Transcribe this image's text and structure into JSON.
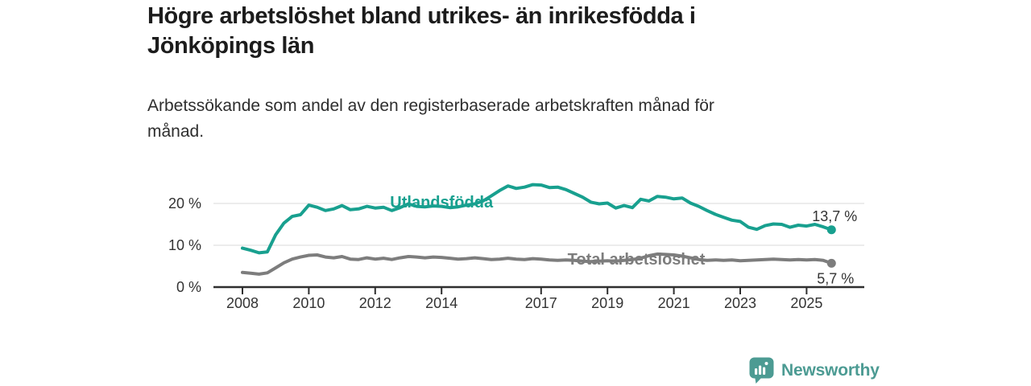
{
  "header": {
    "title_lines": [
      "Högre arbetslöshet bland utrikes- än inrikesfödda i",
      "Jönköpings län"
    ],
    "subtitle_lines": [
      "Arbetssökande som andel av den registerbaserade arbetskraften månad för",
      "månad."
    ]
  },
  "chart_data": {
    "type": "line",
    "title": "Högre arbetslöshet bland utrikes- än inrikesfödda i Jönköpings län",
    "subtitle": "Arbetssökande som andel av den registerbaserade arbetskraften månad för månad.",
    "unit": "%",
    "grid": "horizontal",
    "x_range": [
      2008,
      2025.83
    ],
    "y_range": [
      0,
      25
    ],
    "x_ticks": [
      2008,
      2010,
      2012,
      2014,
      2017,
      2019,
      2021,
      2023,
      2025
    ],
    "y_ticks": [
      {
        "value": 20,
        "label": "20 %"
      },
      {
        "value": 10,
        "label": "10 %"
      },
      {
        "value": 0,
        "label": "0 %"
      }
    ],
    "x_start": 2008,
    "x_step_years": 0.25,
    "series": [
      {
        "name": "Utlandsfödda",
        "color": "#18a08f",
        "end_value": 13.7,
        "end_label": "13,7 %",
        "end_label_offset": {
          "dx": 32,
          "dy": -11
        },
        "label_anchor": {
          "year": 2014.0,
          "value": 19.0
        },
        "values": [
          9.3,
          8.8,
          8.2,
          8.4,
          12.5,
          15.3,
          16.9,
          17.3,
          19.6,
          19.1,
          18.3,
          18.7,
          19.5,
          18.5,
          18.7,
          19.3,
          18.9,
          19.1,
          18.3,
          19.0,
          19.9,
          19.3,
          19.2,
          19.4,
          19.3,
          19.0,
          19.2,
          19.6,
          19.9,
          20.6,
          21.8,
          23.1,
          24.2,
          23.6,
          23.9,
          24.5,
          24.4,
          23.8,
          23.9,
          23.3,
          22.4,
          21.5,
          20.3,
          19.9,
          20.1,
          18.9,
          19.5,
          19.0,
          21.0,
          20.6,
          21.7,
          21.5,
          21.1,
          21.3,
          20.1,
          19.3,
          18.3,
          17.4,
          16.7,
          16.0,
          15.7,
          14.3,
          13.8,
          14.7,
          15.1,
          15.0,
          14.3,
          14.8,
          14.6,
          15.0,
          14.4,
          13.7
        ]
      },
      {
        "name": "Total arbetslöshet",
        "color": "#7d7d7d",
        "end_value": 5.7,
        "end_label": "5,7 %",
        "end_label_offset": {
          "dx": 28,
          "dy": 25
        },
        "label_anchor": {
          "year": 2019.87,
          "value": 5.4
        },
        "values": [
          3.5,
          3.3,
          3.1,
          3.4,
          4.6,
          5.8,
          6.7,
          7.2,
          7.6,
          7.7,
          7.2,
          7.0,
          7.3,
          6.7,
          6.6,
          7.0,
          6.7,
          6.9,
          6.6,
          7.0,
          7.3,
          7.2,
          7.0,
          7.2,
          7.1,
          6.9,
          6.7,
          6.8,
          7.0,
          6.8,
          6.6,
          6.7,
          6.9,
          6.7,
          6.6,
          6.8,
          6.7,
          6.5,
          6.4,
          6.5,
          6.4,
          6.2,
          6.1,
          6.2,
          6.3,
          6.2,
          6.4,
          6.6,
          6.9,
          7.5,
          7.9,
          7.8,
          7.7,
          7.4,
          7.0,
          6.6,
          6.4,
          6.5,
          6.4,
          6.5,
          6.3,
          6.4,
          6.5,
          6.6,
          6.7,
          6.6,
          6.5,
          6.6,
          6.5,
          6.6,
          6.4,
          5.7
        ]
      }
    ],
    "colors": {
      "grid": "#e0e0e0",
      "axis": "#2f2f2f",
      "tick_text": "#333333",
      "value_label_text": "#333333"
    }
  },
  "branding": {
    "logo_text": "Newsworthy",
    "color": "#4c9b93"
  }
}
